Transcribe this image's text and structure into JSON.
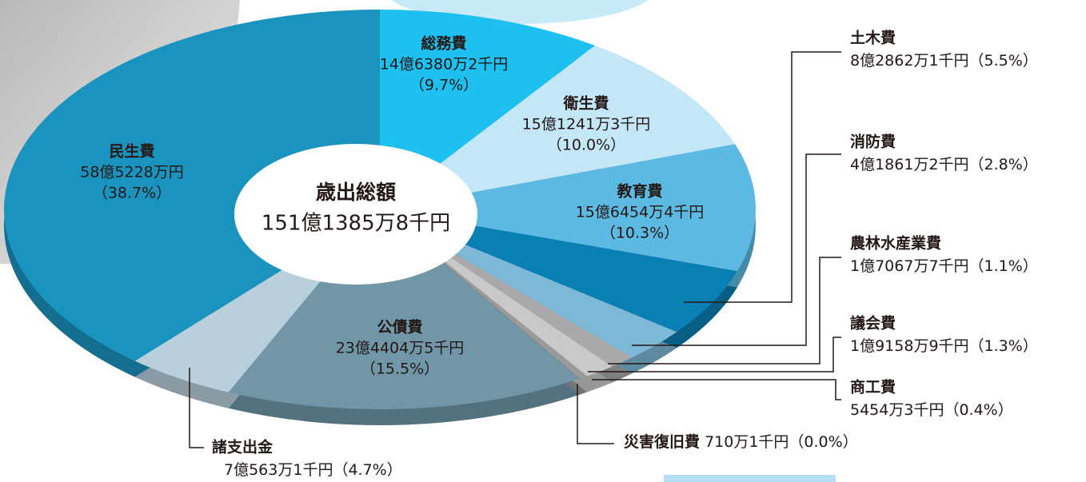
{
  "chart_data": {
    "type": "pie",
    "title": "歳出総額",
    "total": "151億1385万8千円",
    "categories": [
      "総務費",
      "衛生費",
      "教育費",
      "土木費",
      "消防費",
      "農林水産業費",
      "議会費",
      "商工費",
      "災害復旧費",
      "公債費",
      "諸支出金",
      "民生費"
    ],
    "amounts": [
      "14億6380万2千円",
      "15億1241万3千円",
      "15億6454万4千円",
      "8億2862万1千円",
      "4億1861万2千円",
      "1億7067万7千円",
      "1億9158万9千円",
      "5454万3千円",
      "710万1千円",
      "23億4404万5千円",
      "7億563万1千円",
      "58億5228万円"
    ],
    "values": [
      9.7,
      10.0,
      10.3,
      5.5,
      2.8,
      1.1,
      1.3,
      0.4,
      0.0,
      15.5,
      4.7,
      38.7
    ],
    "value_labels": [
      "（9.7%）",
      "（10.0%）",
      "（10.3%）",
      "（5.5%）",
      "（2.8%）",
      "（1.1%）",
      "（1.3%）",
      "（0.4%）",
      "（0.0%）",
      "（15.5%）",
      "（4.7%）",
      "（38.7%）"
    ],
    "colors": [
      "#1ec0f0",
      "#c4e7f7",
      "#5cb9e1",
      "#0a7fb3",
      "#7db8d7",
      "#a9a9a9",
      "#c9c9c9",
      "#9a9a9a",
      "#ffffff",
      "#7096a8",
      "#b9cfdc",
      "#1a93be"
    ]
  }
}
